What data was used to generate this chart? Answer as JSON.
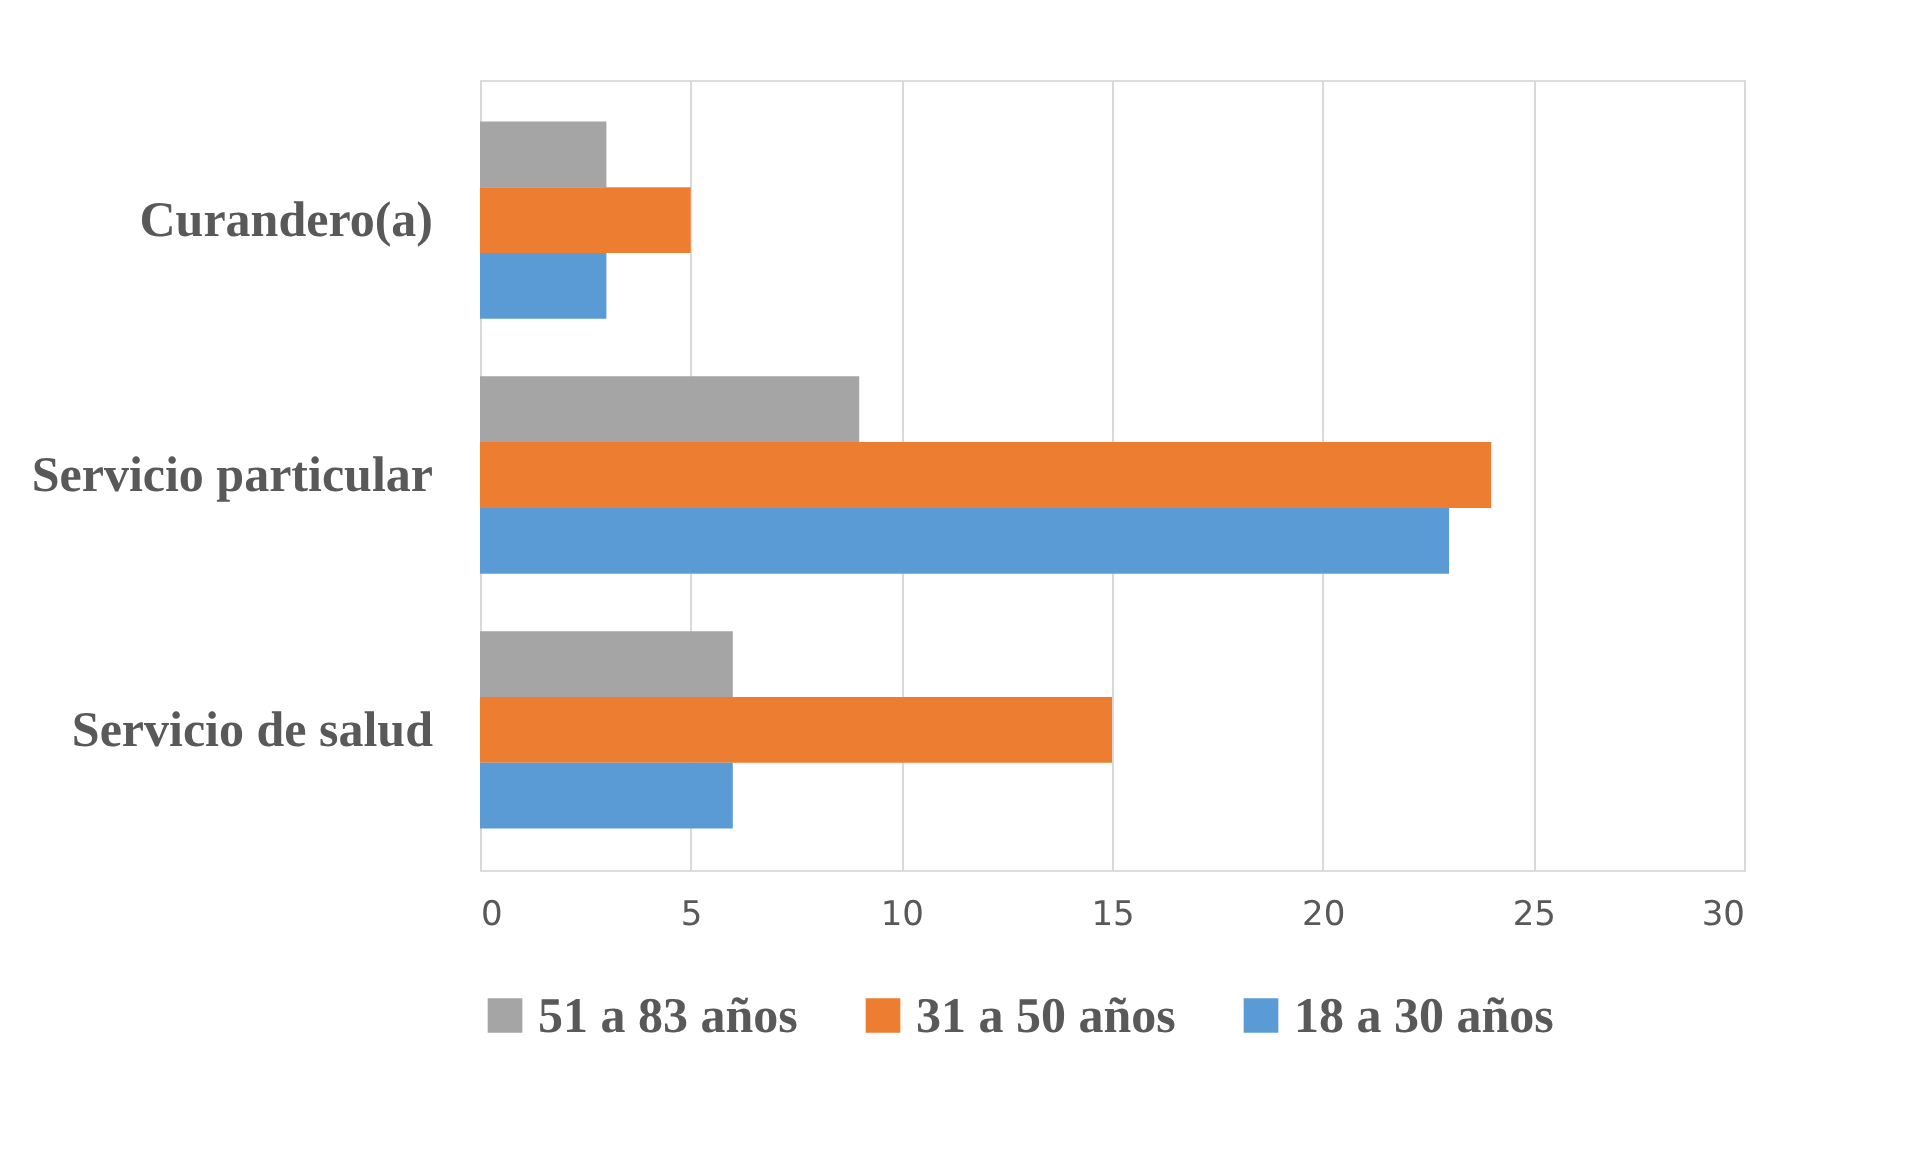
{
  "chart_data": {
    "type": "bar",
    "orientation": "horizontal",
    "categories": [
      "Curandero(a)",
      "Servicio particular",
      "Servicio de salud"
    ],
    "series": [
      {
        "name": "51 a 83 años",
        "color": "#a5a5a5",
        "values": [
          3,
          9,
          6
        ]
      },
      {
        "name": "31 a 50 años",
        "color": "#ed7d31",
        "values": [
          5,
          24,
          15
        ]
      },
      {
        "name": "18 a 30 años",
        "color": "#5b9bd5",
        "values": [
          3,
          23,
          6
        ]
      }
    ],
    "xlim": [
      0,
      30
    ],
    "xticks": [
      0,
      5,
      10,
      15,
      20,
      25,
      30
    ],
    "grid": "x",
    "legend": "bottom"
  }
}
